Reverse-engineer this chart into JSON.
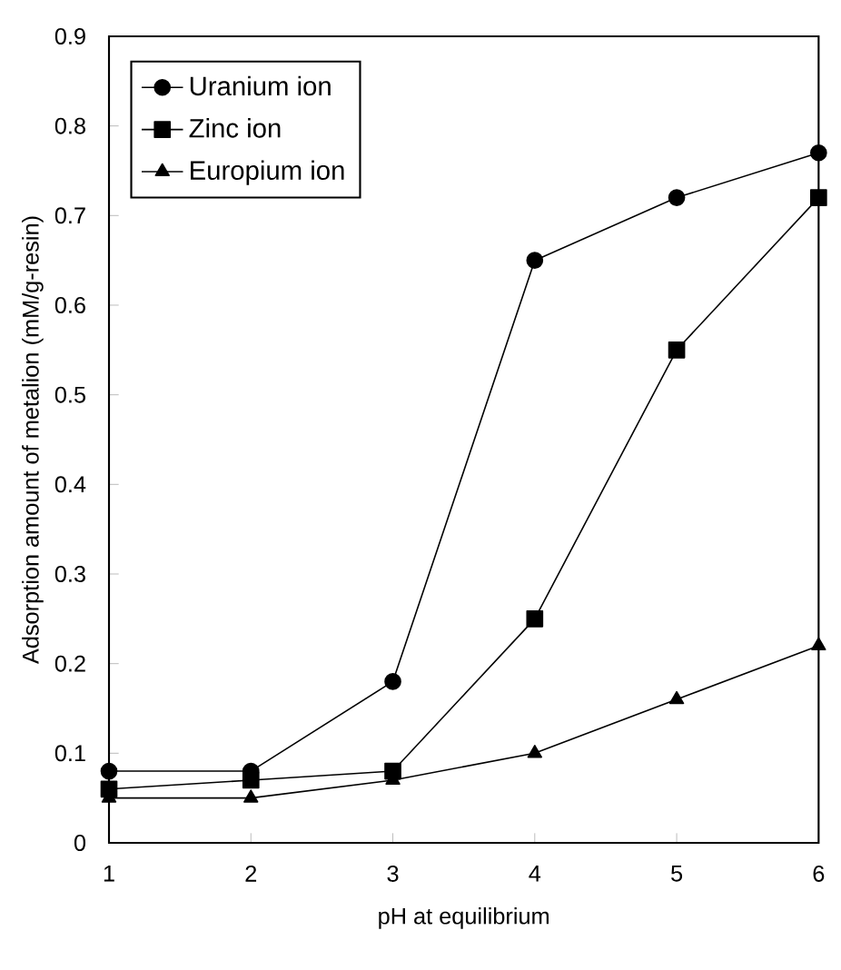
{
  "chart_data": {
    "type": "line",
    "xlabel": "pH at equilibrium",
    "ylabel": "Adsorption amount of metalion (mM/g-resin)",
    "x": [
      1,
      2,
      3,
      4,
      5,
      6
    ],
    "series": [
      {
        "name": "Uranium ion",
        "color": "#000000",
        "marker": "circle",
        "values": [
          0.08,
          0.08,
          0.18,
          0.65,
          0.72,
          0.77
        ]
      },
      {
        "name": "Zinc ion",
        "color": "#000000",
        "marker": "square",
        "values": [
          0.06,
          0.07,
          0.08,
          0.25,
          0.55,
          0.72
        ]
      },
      {
        "name": "Europium ion",
        "color": "#000000",
        "marker": "triangle",
        "values": [
          0.05,
          0.05,
          0.07,
          0.1,
          0.16,
          0.22
        ]
      }
    ],
    "xlim": [
      1,
      6
    ],
    "ylim": [
      0,
      0.9
    ],
    "xticks": [
      1,
      2,
      3,
      4,
      5,
      6
    ],
    "yticks": [
      0,
      0.1,
      0.2,
      0.3,
      0.4,
      0.5,
      0.6,
      0.7,
      0.8,
      0.9
    ],
    "grid": false,
    "legend": "top left",
    "line_style": "solid"
  }
}
